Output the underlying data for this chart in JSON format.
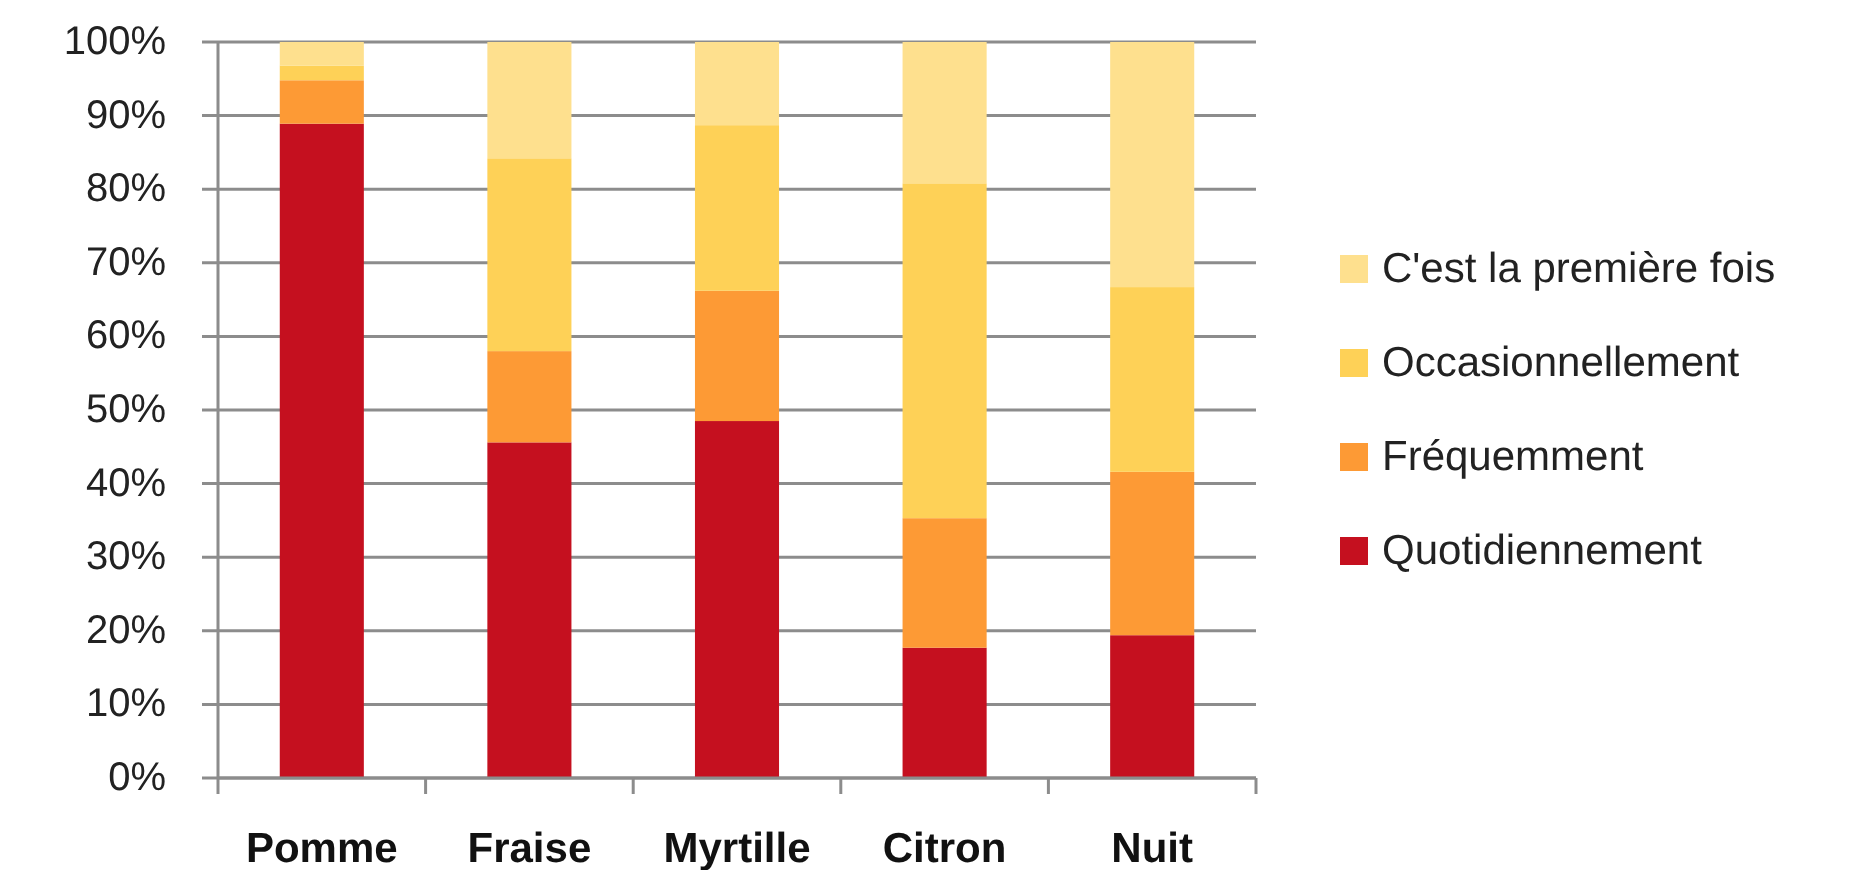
{
  "chart_data": {
    "type": "bar",
    "stacked": true,
    "categories": [
      "Pomme",
      "Fraise",
      "Myrtille",
      "Citron",
      "Nuit"
    ],
    "series": [
      {
        "name": "Quotidiennement",
        "color": "#c5101f",
        "values": [
          88.9,
          45.6,
          48.5,
          17.7,
          19.4
        ]
      },
      {
        "name": "Fréquemment",
        "color": "#fd9a35",
        "values": [
          5.9,
          12.4,
          17.7,
          17.6,
          22.2
        ]
      },
      {
        "name": "Occasionnellement",
        "color": "#fed157",
        "values": [
          2.0,
          26.2,
          22.5,
          45.5,
          25.1
        ]
      },
      {
        "name": "C'est la première fois",
        "color": "#fee08e",
        "values": [
          3.2,
          15.8,
          11.3,
          19.2,
          33.3
        ]
      }
    ],
    "ylim": [
      0,
      100
    ],
    "yticks": [
      {
        "value": 0,
        "label": "0%"
      },
      {
        "value": 10,
        "label": "10%"
      },
      {
        "value": 20,
        "label": "20%"
      },
      {
        "value": 30,
        "label": "30%"
      },
      {
        "value": 40,
        "label": "40%"
      },
      {
        "value": 50,
        "label": "50%"
      },
      {
        "value": 60,
        "label": "60%"
      },
      {
        "value": 70,
        "label": "70%"
      },
      {
        "value": 80,
        "label": "80%"
      },
      {
        "value": 90,
        "label": "90%"
      },
      {
        "value": 100,
        "label": "100%"
      }
    ],
    "grid": "y",
    "legend": "right"
  }
}
